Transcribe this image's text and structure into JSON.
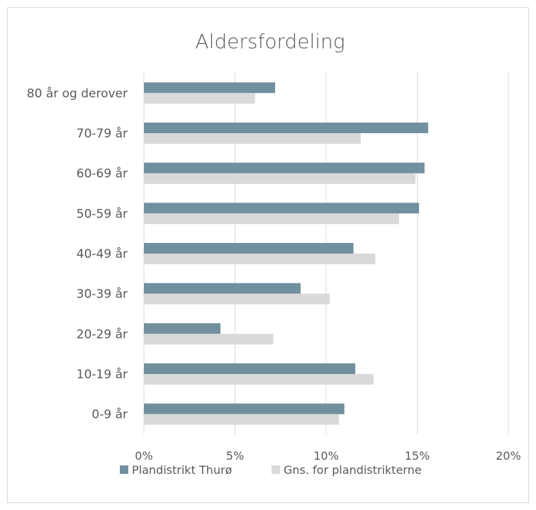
{
  "chart_data": {
    "type": "bar",
    "orientation": "horizontal",
    "title": "Aldersfordeling",
    "categories": [
      "80 år og derover",
      "70-79 år",
      "60-69 år",
      "50-59 år",
      "40-49 år",
      "30-39 år",
      "20-29 år",
      "10-19 år",
      "0-9 år"
    ],
    "series": [
      {
        "name": "Plandistrikt Thurø",
        "color": "#71909f",
        "values": [
          7.2,
          15.6,
          15.4,
          15.1,
          11.5,
          8.6,
          4.2,
          11.6,
          11.0
        ]
      },
      {
        "name": "Gns. for plandistrikterne",
        "color": "#d9d9d9",
        "values": [
          6.1,
          11.9,
          14.9,
          14.0,
          12.7,
          10.2,
          7.1,
          12.6,
          10.7
        ]
      }
    ],
    "xlim": [
      0,
      20
    ],
    "xticks": [
      "0%",
      "5%",
      "10%",
      "15%",
      "20%"
    ],
    "grid": true,
    "legend_position": "bottom"
  }
}
